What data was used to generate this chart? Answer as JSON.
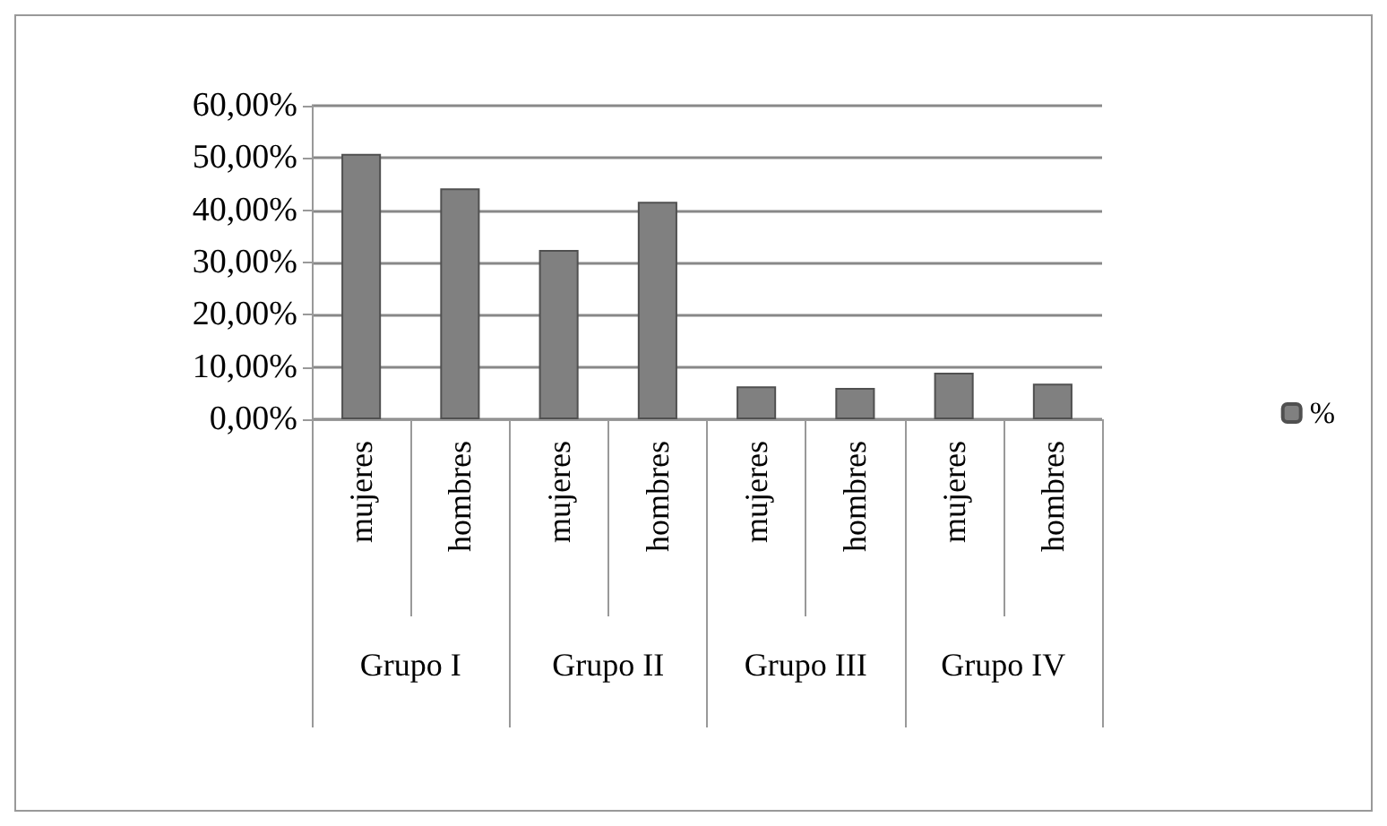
{
  "chart_data": {
    "type": "bar",
    "categories": [
      "mujeres",
      "hombres",
      "mujeres",
      "hombres",
      "mujeres",
      "hombres",
      "mujeres",
      "hombres"
    ],
    "series": [
      {
        "name": "%",
        "color": "#808080",
        "values": [
          50.8,
          44.2,
          32.4,
          41.6,
          6.3,
          6.0,
          8.9,
          6.8
        ]
      }
    ],
    "annotations": [
      "Grupo I",
      "Grupo II",
      "Grupo III",
      "Grupo IV"
    ],
    "ylim": [
      0,
      60
    ],
    "yticks": [
      {
        "value": 0,
        "label": "0,00%"
      },
      {
        "value": 10,
        "label": "10,00%"
      },
      {
        "value": 20,
        "label": "20,00%"
      },
      {
        "value": 30,
        "label": "30,00%"
      },
      {
        "value": 40,
        "label": "40,00%"
      },
      {
        "value": 50,
        "label": "50,00%"
      },
      {
        "value": 60,
        "label": "60,00%"
      }
    ],
    "grid": "y",
    "legend": "right"
  }
}
